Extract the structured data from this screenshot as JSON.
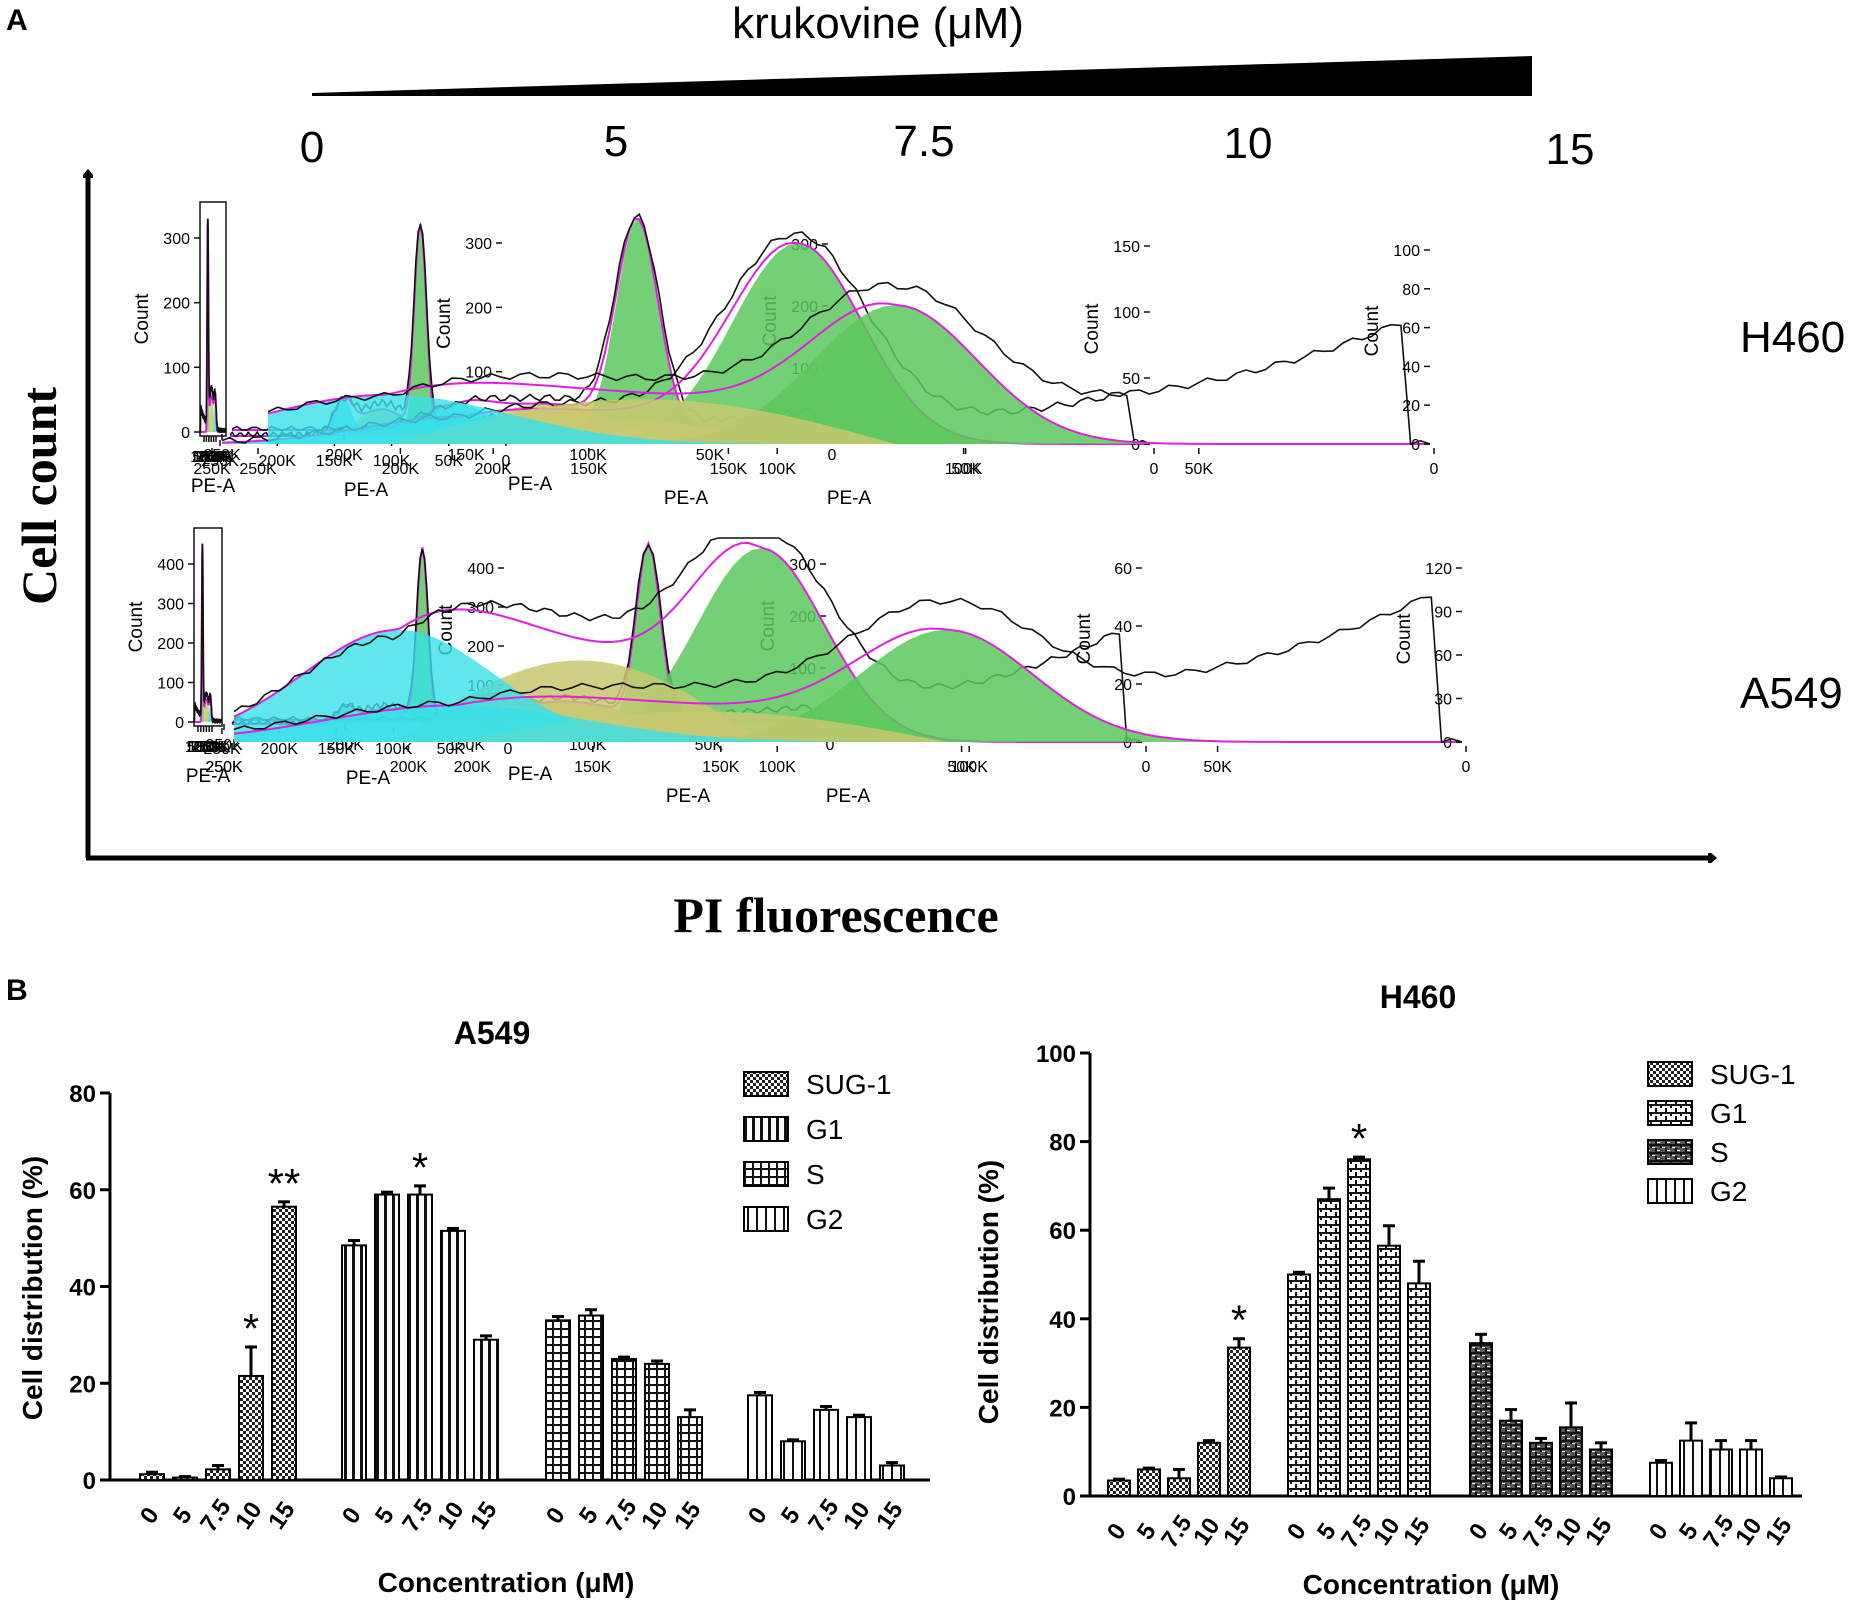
{
  "panel_a": {
    "letter": "A",
    "drug_label": "krukovine (μM)",
    "concentrations": [
      "0",
      "5",
      "7.5",
      "10",
      "15"
    ],
    "y_axis_title": "Cell count",
    "x_axis_title": "PI fluorescence",
    "cell_lines": [
      "H460",
      "A549"
    ],
    "histogram_x_ticks": [
      "0",
      "50K",
      "100K",
      "150K",
      "200K",
      "250K"
    ],
    "histogram_x_label": "PE-A",
    "histogram_y_label": "Count",
    "histogram_y_ticks": {
      "H460": [
        [
          "0",
          "100",
          "200",
          "300"
        ],
        [
          "0",
          "100",
          "200",
          "300"
        ],
        [
          "0",
          "100",
          "200",
          "300"
        ],
        [
          "0",
          "50",
          "100",
          "150"
        ],
        [
          "0",
          "20",
          "40",
          "60",
          "80",
          "100"
        ]
      ],
      "A549": [
        [
          "0",
          "100",
          "200",
          "300",
          "400"
        ],
        [
          "0",
          "100",
          "200",
          "300",
          "400"
        ],
        [
          "0",
          "100",
          "200",
          "300"
        ],
        [
          "0",
          "20",
          "40",
          "60"
        ],
        [
          "0",
          "30",
          "60",
          "90",
          "120"
        ]
      ]
    }
  },
  "panel_b": {
    "letter": "B"
  },
  "colors": {
    "g1_fill": "#5cc85c",
    "sub_fill": "#c8c870",
    "g2_fill": "#38e0e8",
    "fit_line": "#e020e0"
  },
  "chart_data": [
    {
      "type": "bar",
      "title": "A549",
      "xlabel": "Concentration (μM)",
      "ylabel": "Cell distribution (%)",
      "ylim": [
        0,
        80
      ],
      "yticks": [
        "0",
        "20",
        "40",
        "60",
        "80"
      ],
      "categories": [
        "0",
        "5",
        "7.5",
        "10",
        "15"
      ],
      "series": [
        {
          "name": "SUG-1",
          "pattern": "checker",
          "values": [
            1.2,
            0.5,
            2.2,
            21.5,
            56.5
          ],
          "errors": [
            0.4,
            0.2,
            0.8,
            6.0,
            1.0
          ]
        },
        {
          "name": "G1",
          "pattern": "vertical",
          "values": [
            48.5,
            59.0,
            59.0,
            51.5,
            29.0
          ],
          "errors": [
            1.0,
            0.5,
            1.8,
            0.5,
            0.8
          ]
        },
        {
          "name": "S",
          "pattern": "grid",
          "values": [
            33.0,
            34.0,
            25.0,
            24.0,
            13.0
          ],
          "errors": [
            0.8,
            1.2,
            0.4,
            0.6,
            1.5
          ]
        },
        {
          "name": "G2",
          "pattern": "vertical-wide",
          "values": [
            17.5,
            8.0,
            14.5,
            13.0,
            3.0
          ],
          "errors": [
            0.6,
            0.3,
            0.7,
            0.4,
            0.6
          ]
        }
      ],
      "significance": [
        {
          "series": "SUG-1",
          "category": "10",
          "mark": "*"
        },
        {
          "series": "SUG-1",
          "category": "15",
          "mark": "**"
        },
        {
          "series": "G1",
          "category": "7.5",
          "mark": "*"
        }
      ]
    },
    {
      "type": "bar",
      "title": "H460",
      "xlabel": "Concentration (μM)",
      "ylabel": "Cell distribution (%)",
      "ylim": [
        0,
        100
      ],
      "yticks": [
        "0",
        "20",
        "40",
        "60",
        "80",
        "100"
      ],
      "categories": [
        "0",
        "5",
        "7.5",
        "10",
        "15"
      ],
      "series": [
        {
          "name": "SUG-1",
          "pattern": "checker",
          "values": [
            3.5,
            6.0,
            4.0,
            12.0,
            33.5
          ],
          "errors": [
            0.3,
            0.3,
            2.0,
            0.5,
            2.0
          ]
        },
        {
          "name": "G1",
          "pattern": "brick",
          "values": [
            50.0,
            67.0,
            76.0,
            56.5,
            48.0
          ],
          "errors": [
            0.5,
            2.5,
            0.5,
            4.5,
            5.0
          ]
        },
        {
          "name": "S",
          "pattern": "brick-dark",
          "values": [
            34.5,
            17.0,
            12.0,
            15.5,
            10.5
          ],
          "errors": [
            2.0,
            2.5,
            1.0,
            5.5,
            1.5
          ]
        },
        {
          "name": "G2",
          "pattern": "vertical-wide",
          "values": [
            7.5,
            12.5,
            10.5,
            10.5,
            4.0
          ],
          "errors": [
            0.5,
            4.0,
            2.0,
            2.0,
            0.3
          ]
        }
      ],
      "significance": [
        {
          "series": "SUG-1",
          "category": "15",
          "mark": "*"
        },
        {
          "series": "G1",
          "category": "7.5",
          "mark": "*"
        }
      ]
    }
  ]
}
